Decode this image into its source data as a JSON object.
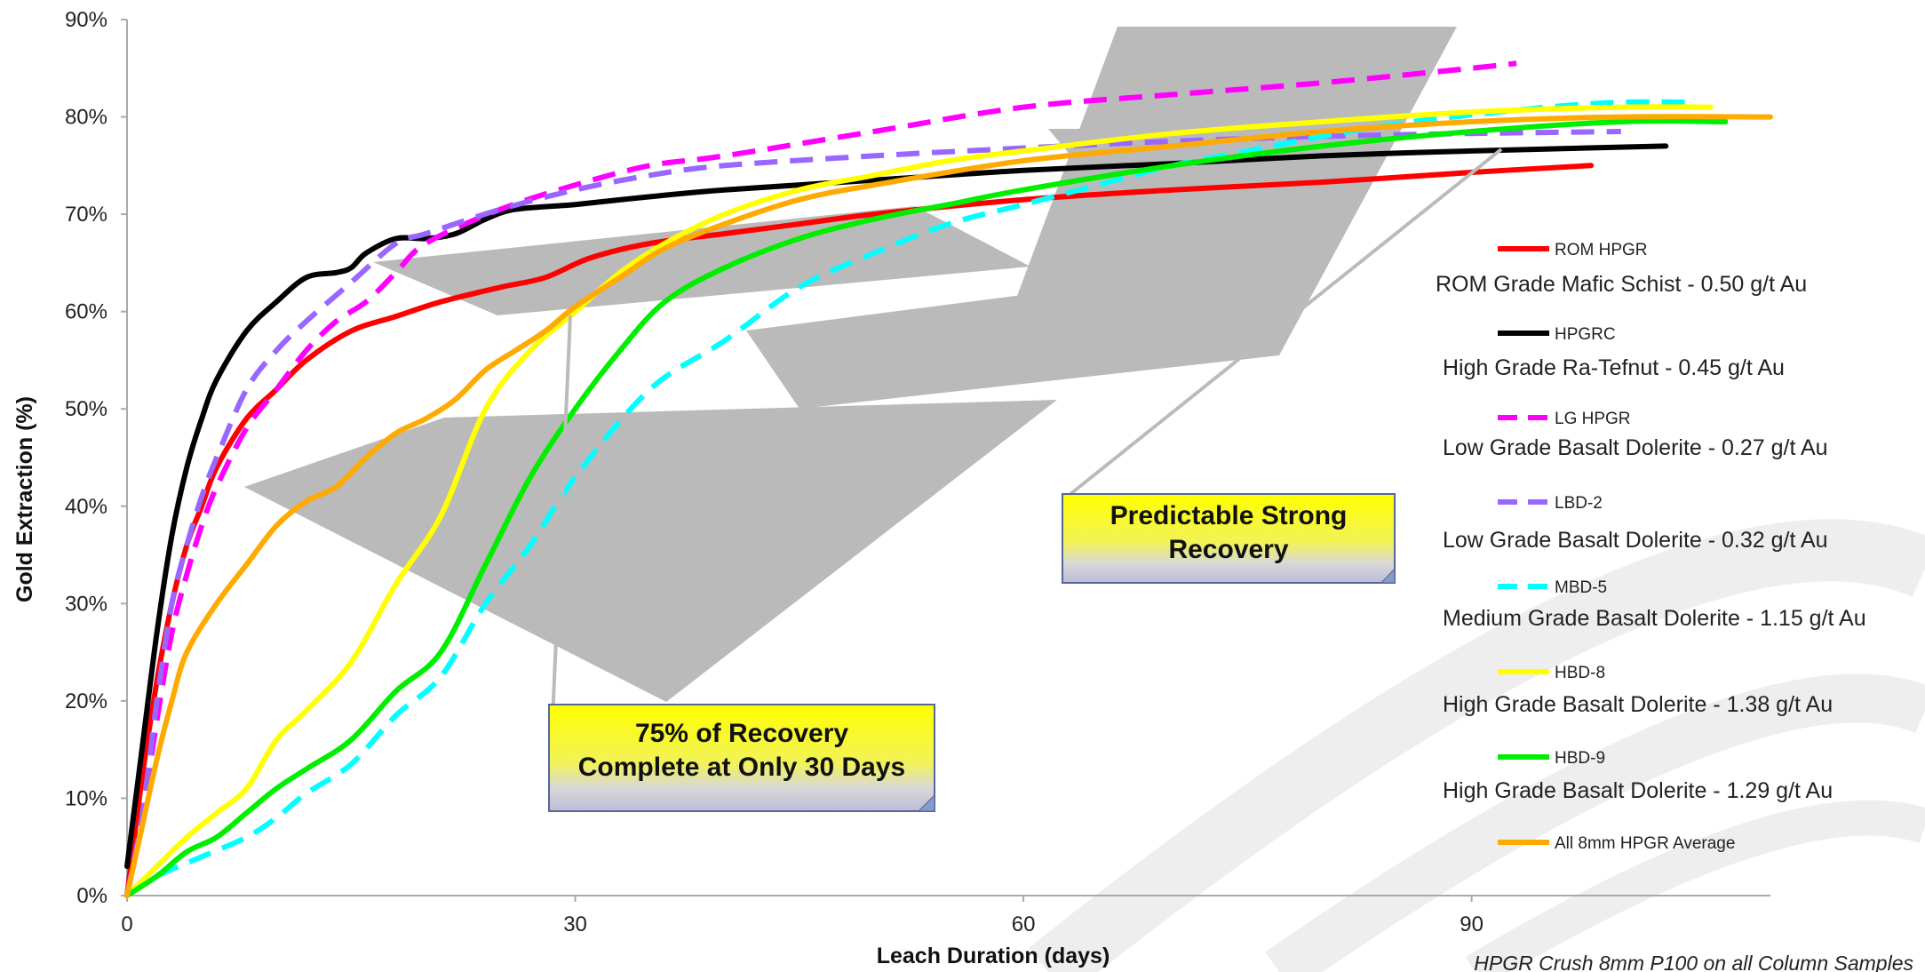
{
  "chart_data": {
    "type": "line",
    "xlabel": "Leach Duration (days)",
    "ylabel": "Gold Extraction (%)",
    "xlim": [
      0,
      110
    ],
    "ylim": [
      0,
      90
    ],
    "xticks": [
      0,
      30,
      60,
      90
    ],
    "yticks": [
      0,
      10,
      20,
      30,
      40,
      50,
      60,
      70,
      80,
      90
    ],
    "xtick_labels": [
      "0",
      "30",
      "60",
      "90"
    ],
    "ytick_labels": [
      "0%",
      "10%",
      "20%",
      "30%",
      "40%",
      "50%",
      "60%",
      "70%",
      "80%",
      "90%"
    ],
    "grid": false,
    "legend_position": "right",
    "series": [
      {
        "name": "ROM HPGR",
        "description": "ROM Grade Mafic Schist - 0.50 g/t Au",
        "color": "#ff0000",
        "dash": "solid",
        "x": [
          0,
          1,
          2,
          3,
          4,
          5,
          6,
          8,
          10,
          12,
          15,
          18,
          21,
          25,
          28,
          31,
          35,
          40,
          45,
          50,
          60,
          70,
          80,
          90,
          98
        ],
        "y": [
          0,
          12,
          22,
          30,
          36,
          40,
          44,
          49,
          52,
          55,
          58,
          59.5,
          61,
          62.5,
          63.5,
          65.5,
          67,
          68,
          69,
          70,
          71.5,
          72.5,
          73.3,
          74.3,
          75
        ]
      },
      {
        "name": "HPGRC",
        "description": "High Grade Ra-Tefnut - 0.45 g/t Au",
        "color": "#000000",
        "dash": "solid",
        "x": [
          0,
          1,
          2,
          3,
          4,
          5,
          6,
          8,
          10,
          12,
          14,
          15,
          16,
          18,
          20,
          22,
          24,
          26,
          30,
          35,
          40,
          50,
          60,
          70,
          80,
          90,
          103
        ],
        "y": [
          3,
          15,
          27,
          37,
          44,
          49,
          53,
          58,
          61,
          63.5,
          64,
          64.5,
          66,
          67.5,
          67.5,
          68,
          69.5,
          70.5,
          71,
          71.8,
          72.5,
          73.5,
          74.5,
          75.2,
          76,
          76.5,
          77
        ]
      },
      {
        "name": "LG HPGR",
        "description": "Low Grade Basalt Dolerite - 0.27 g/t Au",
        "color": "#ff00ff",
        "dash": "dashed",
        "x": [
          0,
          1,
          2,
          3,
          4,
          5,
          6,
          8,
          10,
          12,
          14,
          16,
          18,
          20,
          25,
          30,
          35,
          40,
          50,
          60,
          70,
          80,
          90,
          93
        ],
        "y": [
          0,
          8,
          18,
          27,
          33,
          38,
          42,
          48,
          52,
          56,
          59,
          61,
          64,
          67,
          70.5,
          73,
          75,
          76,
          78.5,
          81,
          82.3,
          83.5,
          85,
          85.5
        ]
      },
      {
        "name": "LBD-2",
        "description": "Low Grade Basalt Dolerite - 0.32 g/t Au",
        "color": "#9966ff",
        "dash": "dashed",
        "x": [
          0,
          1,
          2,
          3,
          4,
          5,
          6,
          8,
          10,
          12,
          15,
          18,
          20,
          25,
          30,
          35,
          40,
          50,
          60,
          70,
          80,
          90,
          100
        ],
        "y": [
          0,
          8,
          20,
          30,
          36,
          41,
          45,
          52,
          56,
          59,
          63,
          67,
          68,
          70.5,
          72.5,
          74,
          75,
          76,
          76.8,
          77.5,
          78,
          78.3,
          78.5
        ]
      },
      {
        "name": "MBD-5",
        "description": "Medium Grade Basalt Dolerite - 1.15 g/t Au",
        "color": "#00ffff",
        "dash": "dashed",
        "x": [
          0,
          2,
          5,
          8,
          10,
          12,
          15,
          18,
          21,
          24,
          27,
          30,
          35,
          40,
          45,
          50,
          55,
          60,
          65,
          70,
          75,
          80,
          85,
          90,
          95,
          100,
          105
        ],
        "y": [
          0,
          2,
          4,
          6,
          8,
          10.5,
          13.5,
          18.5,
          22.5,
          30,
          36,
          43,
          52,
          57,
          62.5,
          66,
          69,
          71,
          73,
          75,
          76.5,
          78,
          79.3,
          80.2,
          81,
          81.5,
          81.5
        ]
      },
      {
        "name": "HBD-8",
        "description": "High Grade Basalt Dolerite - 1.38 g/t Au",
        "color": "#ffff00",
        "dash": "solid",
        "x": [
          0,
          2,
          4,
          6,
          8,
          10,
          12,
          15,
          18,
          21,
          24,
          27,
          30,
          33,
          36,
          40,
          45,
          50,
          55,
          60,
          70,
          80,
          90,
          100,
          106
        ],
        "y": [
          0,
          3,
          6,
          8.5,
          11,
          16,
          19,
          24,
          32,
          39,
          50,
          56,
          60,
          64,
          67,
          70,
          72.5,
          74,
          75.5,
          76.5,
          78.3,
          79.5,
          80.5,
          81,
          81
        ]
      },
      {
        "name": "HBD-9",
        "description": "High Grade Basalt Dolerite - 1.29 g/t Au",
        "color": "#00ee00",
        "dash": "solid",
        "x": [
          0,
          2,
          4,
          6,
          8,
          10,
          12,
          15,
          18,
          21,
          24,
          27,
          30,
          33,
          36,
          40,
          45,
          50,
          55,
          60,
          70,
          80,
          90,
          100,
          107
        ],
        "y": [
          0,
          2,
          4.5,
          6,
          8.5,
          11,
          13,
          16,
          21,
          25,
          34,
          43,
          50,
          56,
          61,
          64.5,
          67.5,
          69.5,
          71,
          72.5,
          75,
          77,
          78.5,
          79.5,
          79.5
        ]
      },
      {
        "name": "All 8mm HPGR Average",
        "description": "",
        "color": "#ffaa00",
        "dash": "solid",
        "x": [
          0,
          1,
          2,
          3,
          4,
          6,
          8,
          10,
          12,
          14,
          16,
          18,
          20,
          22,
          24,
          26,
          28,
          30,
          33,
          36,
          40,
          45,
          50,
          60,
          70,
          80,
          90,
          100,
          110
        ],
        "y": [
          0,
          7,
          14,
          20,
          25,
          30,
          34,
          38,
          40.5,
          42,
          45,
          47.5,
          49,
          51,
          54,
          56,
          58,
          60.5,
          63.5,
          66.5,
          69,
          71.5,
          73,
          75.5,
          77,
          78.5,
          79.5,
          80,
          80
        ]
      }
    ],
    "annotations": [
      {
        "text_lines": [
          "Predictable Strong",
          "Recovery"
        ]
      },
      {
        "text_lines": [
          "75% of Recovery",
          "Complete at Only 30 Days"
        ]
      }
    ],
    "footnote": "HPGR Crush 8mm P100 on all Column Samples"
  }
}
